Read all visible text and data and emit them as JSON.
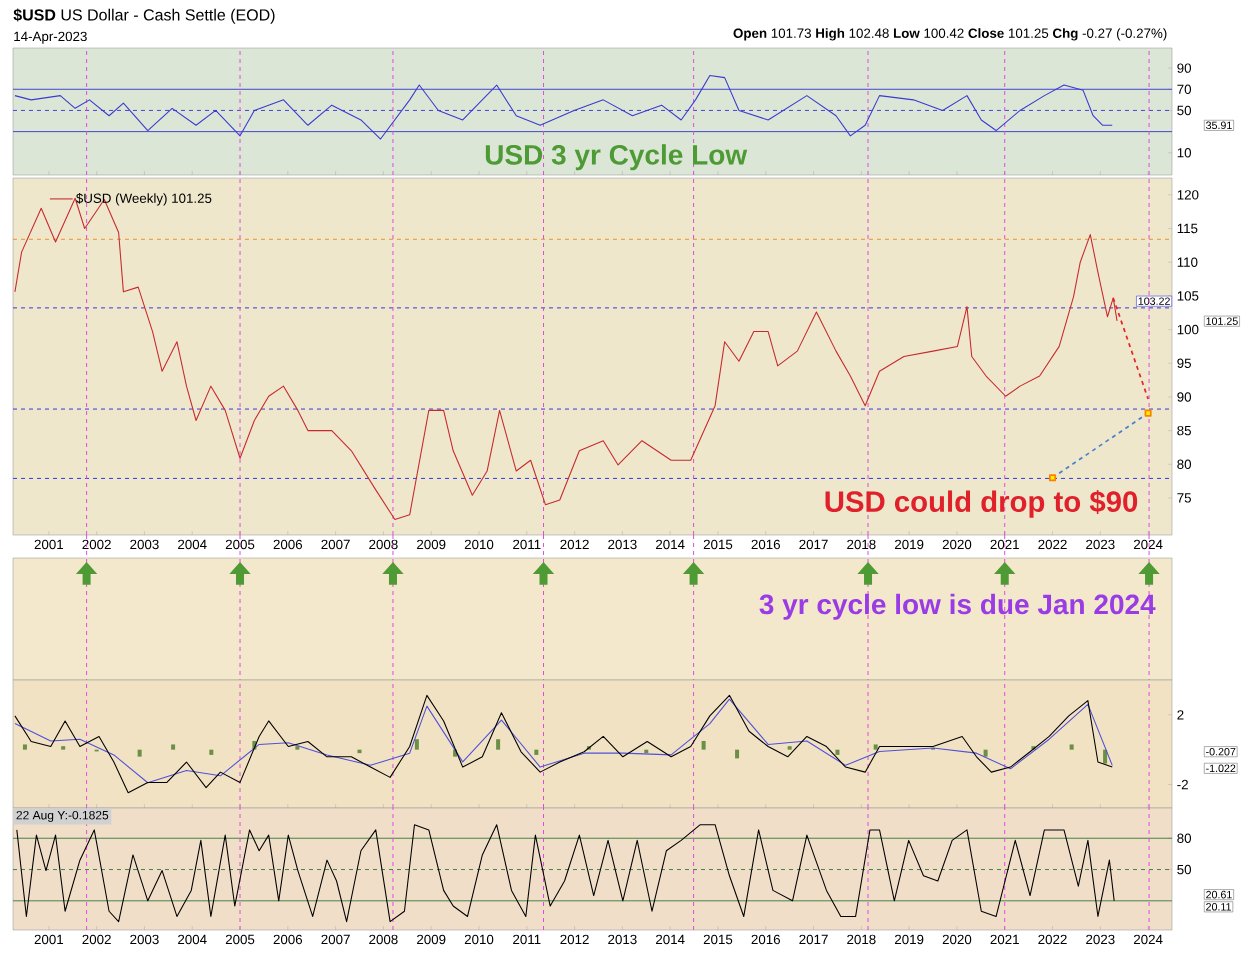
{
  "chart_data": [
    {
      "type": "line",
      "title": "**$USD** US Dollar - Cash Settle (EOD)",
      "subtitle": "14-Apr-2023",
      "annotations": [
        "**Open** 101.73 **High** 102.48 **Low** 100.42 **Close** 101.25 **Chg** -0.27 (-0.27%)",
        "USD 3 yr Cycle Low",
        "35.91"
      ],
      "tick_labels": "y",
      "xlim": [
        2000.25,
        2024.5
      ],
      "xticks": [
        2001,
        2002,
        2003,
        2004,
        2005,
        2006,
        2007,
        2008,
        2009,
        2010,
        2011,
        2012,
        2013,
        2014,
        2015,
        2016,
        2017,
        2018,
        2019,
        2020,
        2021,
        2022,
        2023,
        2024
      ],
      "ylim": [
        -11,
        109
      ],
      "yticks": [
        10,
        50,
        70,
        90
      ],
      "ref_lines": [
        {
          "axis": "y",
          "value": 70,
          "color": "#3a3ad0"
        },
        {
          "axis": "y",
          "value": 30,
          "color": "#3a3ad0"
        },
        {
          "axis": "y",
          "value": 50,
          "color": "#3a3ad0",
          "line_style": "dashed"
        },
        {
          "axis": "x",
          "value": 2001.79,
          "color": "#e040e0",
          "line_style": "dashed"
        },
        {
          "axis": "x",
          "value": 2005.0,
          "color": "#e040e0",
          "line_style": "dashed"
        },
        {
          "axis": "x",
          "value": 2008.2,
          "color": "#e040e0",
          "line_style": "dashed"
        },
        {
          "axis": "x",
          "value": 2011.35,
          "color": "#e040e0",
          "line_style": "dashed"
        },
        {
          "axis": "x",
          "value": 2014.49,
          "color": "#e040e0",
          "line_style": "dashed"
        },
        {
          "axis": "x",
          "value": 2018.14,
          "color": "#e040e0",
          "line_style": "dashed"
        },
        {
          "axis": "x",
          "value": 2021.0,
          "color": "#e040e0",
          "line_style": "dashed"
        },
        {
          "axis": "x",
          "value": 2024.02,
          "color": "#e040e0",
          "line_style": "dashed"
        }
      ],
      "series": [
        {
          "color": "#3a3ad0",
          "x": [
            2000.29,
            2000.63,
            2001.24,
            2001.55,
            2001.85,
            2002.26,
            2002.56,
            2003.07,
            2003.58,
            2004.08,
            2004.49,
            2005.0,
            2005.3,
            2005.91,
            2006.42,
            2006.92,
            2007.53,
            2007.94,
            2008.55,
            2008.75,
            2009.15,
            2009.66,
            2010.37,
            2010.78,
            2011.28,
            2011.99,
            2012.6,
            2013.21,
            2013.82,
            2014.23,
            2014.53,
            2014.83,
            2015.14,
            2015.44,
            2016.05,
            2016.86,
            2017.47,
            2017.77,
            2018.08,
            2018.38,
            2019.09,
            2019.7,
            2020.21,
            2020.51,
            2020.82,
            2021.32,
            2021.83,
            2022.24,
            2022.64,
            2022.85,
            2023.05,
            2023.25
          ],
          "values": [
            64,
            60,
            64,
            52,
            60,
            45,
            57,
            31,
            52,
            36,
            50,
            26,
            50,
            60,
            36,
            55,
            41,
            23,
            60,
            74,
            50,
            41,
            74,
            45,
            36,
            50,
            60,
            45,
            55,
            41,
            60,
            83,
            81,
            50,
            41,
            64,
            45,
            26,
            36,
            64,
            60,
            50,
            64,
            41,
            31,
            50,
            64,
            74,
            69,
            45,
            36,
            36
          ]
        }
      ]
    },
    {
      "type": "line",
      "legend": "top left",
      "annotations": [
        "USD could drop to $90",
        "101.25"
      ],
      "xlim": [
        2000.25,
        2024.5
      ],
      "xticks": [
        2001,
        2002,
        2003,
        2004,
        2005,
        2006,
        2007,
        2008,
        2009,
        2010,
        2011,
        2012,
        2013,
        2014,
        2015,
        2016,
        2017,
        2018,
        2019,
        2020,
        2021,
        2022,
        2023,
        2024
      ],
      "ylim": [
        69.5,
        122.5
      ],
      "yticks": [
        75,
        80,
        85,
        90,
        95,
        100,
        105,
        110,
        115,
        120
      ],
      "ref_lines": [
        {
          "axis": "y",
          "value": 113.4,
          "color": "#f08a20",
          "line_style": "dashed"
        },
        {
          "axis": "y",
          "value": 103.22,
          "color": "#2a2ae0",
          "line_style": "dashed",
          "label": "103.22"
        },
        {
          "axis": "y",
          "value": 88.2,
          "color": "#2a2ae0",
          "line_style": "dashed"
        },
        {
          "axis": "y",
          "value": 77.9,
          "color": "#2a2ae0",
          "line_style": "dashed"
        },
        {
          "axis": "x",
          "value": 2001.79,
          "color": "#e040e0",
          "line_style": "dashed"
        },
        {
          "axis": "x",
          "value": 2005.0,
          "color": "#e040e0",
          "line_style": "dashed"
        },
        {
          "axis": "x",
          "value": 2008.2,
          "color": "#e040e0",
          "line_style": "dashed"
        },
        {
          "axis": "x",
          "value": 2011.35,
          "color": "#e040e0",
          "line_style": "dashed"
        },
        {
          "axis": "x",
          "value": 2014.49,
          "color": "#e040e0",
          "line_style": "dashed"
        },
        {
          "axis": "x",
          "value": 2018.14,
          "color": "#e040e0",
          "line_style": "dashed"
        },
        {
          "axis": "x",
          "value": 2021.0,
          "color": "#e040e0",
          "line_style": "dashed"
        },
        {
          "axis": "x",
          "value": 2024.02,
          "color": "#e040e0",
          "line_style": "dashed"
        }
      ],
      "series": [
        {
          "name": "$USD (Weekly) 101.25",
          "color": "#c8282e",
          "x": [
            2000.29,
            2000.43,
            2000.84,
            2001.14,
            2001.55,
            2001.75,
            2002.16,
            2002.46,
            2002.56,
            2002.87,
            2003.17,
            2003.37,
            2003.68,
            2003.88,
            2004.08,
            2004.39,
            2004.69,
            2005.0,
            2005.3,
            2005.6,
            2005.91,
            2006.21,
            2006.42,
            2006.92,
            2007.33,
            2007.84,
            2008.24,
            2008.55,
            2008.95,
            2009.26,
            2009.46,
            2009.86,
            2010.17,
            2010.43,
            2010.78,
            2011.08,
            2011.39,
            2011.69,
            2012.1,
            2012.6,
            2012.91,
            2013.41,
            2014.02,
            2014.43,
            2014.94,
            2015.14,
            2015.44,
            2015.75,
            2016.05,
            2016.25,
            2016.66,
            2017.06,
            2017.47,
            2017.77,
            2018.08,
            2018.38,
            2018.89,
            2019.5,
            2020.01,
            2020.21,
            2020.31,
            2020.61,
            2021.02,
            2021.32,
            2021.73,
            2022.14,
            2022.44,
            2022.58,
            2022.79,
            2022.95,
            2023.15,
            2023.27,
            2023.35
          ],
          "values": [
            105.6,
            111.5,
            118,
            113,
            119.5,
            115,
            119.3,
            114.4,
            105.6,
            106.3,
            99.7,
            93.8,
            98.2,
            91.6,
            86.5,
            91.6,
            88,
            80.9,
            86.5,
            90.1,
            91.6,
            88,
            85,
            85,
            82,
            76.2,
            71.8,
            72.5,
            88,
            88,
            82,
            75.4,
            79,
            88,
            79,
            80.6,
            74,
            74.7,
            82,
            83.5,
            79.9,
            83.5,
            80.6,
            80.6,
            88.7,
            98.2,
            95.3,
            99.7,
            99.7,
            94.6,
            96.8,
            102.6,
            96.8,
            93.1,
            88.7,
            93.8,
            96,
            96.8,
            97.5,
            103.4,
            96,
            93.1,
            90.1,
            91.6,
            93.1,
            97.5,
            104.9,
            110,
            114.1,
            108.5,
            101.9,
            104.7,
            101.3
          ]
        },
        {
          "color": "#e02828",
          "line_style": "dashed",
          "x": [
            2023.27,
            2024.0
          ],
          "values": [
            104.7,
            89.7
          ]
        },
        {
          "color": "#4a80d0",
          "line_style": "dashed",
          "marker": "square",
          "x": [
            2022.0,
            2024.0
          ],
          "values": [
            78,
            87.6
          ]
        }
      ]
    },
    {
      "type": "other",
      "annotations": [
        "3 yr cycle low is due Jan 2024"
      ]
    },
    {
      "type": "line",
      "tick_labels": "y",
      "annotations": [
        "-0.207",
        "-1.022"
      ],
      "xlim": [
        2000.25,
        2024.5
      ],
      "xticks": [
        2001,
        2002,
        2003,
        2004,
        2005,
        2006,
        2007,
        2008,
        2009,
        2010,
        2011,
        2012,
        2013,
        2014,
        2015,
        2016,
        2017,
        2018,
        2019,
        2020,
        2021,
        2022,
        2023,
        2024
      ],
      "ylim": [
        -3.35,
        4
      ],
      "yticks": [
        -2,
        2
      ],
      "ref_lines": [
        {
          "axis": "x",
          "value": 2001.79,
          "color": "#e040e0",
          "line_style": "dashed"
        },
        {
          "axis": "x",
          "value": 2005.0,
          "color": "#e040e0",
          "line_style": "dashed"
        },
        {
          "axis": "x",
          "value": 2008.2,
          "color": "#e040e0",
          "line_style": "dashed"
        },
        {
          "axis": "x",
          "value": 2011.35,
          "color": "#e040e0",
          "line_style": "dashed"
        },
        {
          "axis": "x",
          "value": 2014.49,
          "color": "#e040e0",
          "line_style": "dashed"
        },
        {
          "axis": "x",
          "value": 2018.14,
          "color": "#e040e0",
          "line_style": "dashed"
        },
        {
          "axis": "x",
          "value": 2021.0,
          "color": "#e040e0",
          "line_style": "dashed"
        },
        {
          "axis": "x",
          "value": 2024.02,
          "color": "#e040e0",
          "line_style": "dashed"
        }
      ],
      "series": [
        {
          "type": "bar",
          "color": "#6a8f45",
          "x": [
            2000.5,
            2001.3,
            2002.0,
            2002.9,
            2003.6,
            2004.4,
            2005.3,
            2006.2,
            2007.5,
            2008.7,
            2009.5,
            2010.4,
            2011.2,
            2012.3,
            2013.5,
            2014.7,
            2015.4,
            2016.5,
            2017.5,
            2018.3,
            2019.5,
            2020.6,
            2021.6,
            2022.4,
            2023.1
          ],
          "values": [
            0.3,
            0.2,
            -0.1,
            -0.4,
            0.3,
            -0.3,
            0.5,
            0.2,
            -0.2,
            0.6,
            -0.4,
            0.6,
            -0.3,
            0.2,
            -0.2,
            0.5,
            -0.5,
            0.2,
            -0.3,
            0.3,
            0.1,
            -0.4,
            0.2,
            0.3,
            -0.8
          ]
        },
        {
          "color": "#5050d8",
          "x": [
            2000.29,
            2001.04,
            2001.65,
            2002.36,
            2003.07,
            2003.88,
            2004.59,
            2005.4,
            2006.01,
            2006.82,
            2007.73,
            2008.55,
            2008.91,
            2009.66,
            2010.47,
            2011.28,
            2012.2,
            2013.01,
            2014.02,
            2014.83,
            2015.24,
            2016.05,
            2016.86,
            2017.67,
            2018.38,
            2019.5,
            2020.41,
            2021.12,
            2021.93,
            2022.74,
            2023.25
          ],
          "values": [
            1.5,
            0.5,
            0.6,
            -0.3,
            -1.9,
            -1.2,
            -1.5,
            0.3,
            0.4,
            -0.3,
            -0.9,
            -0.2,
            2.5,
            -0.7,
            1.7,
            -1.0,
            -0.2,
            -0.2,
            -0.3,
            1.5,
            2.9,
            0.3,
            0.5,
            -0.9,
            -0.1,
            0.1,
            -0.2,
            -1.1,
            0.6,
            2.6,
            -0.9
          ]
        },
        {
          "color": "#000000",
          "x": [
            2000.29,
            2000.63,
            2001.04,
            2001.34,
            2001.65,
            2002.05,
            2002.36,
            2002.66,
            2003.07,
            2003.47,
            2003.88,
            2004.29,
            2004.59,
            2005.0,
            2005.4,
            2005.6,
            2006.01,
            2006.42,
            2006.82,
            2007.33,
            2007.73,
            2008.14,
            2008.55,
            2008.91,
            2009.26,
            2009.66,
            2010.07,
            2010.47,
            2010.88,
            2011.28,
            2011.69,
            2012.2,
            2012.6,
            2013.01,
            2013.52,
            2014.02,
            2014.43,
            2014.83,
            2015.24,
            2015.65,
            2016.05,
            2016.46,
            2016.86,
            2017.27,
            2017.67,
            2018.08,
            2018.38,
            2018.89,
            2019.5,
            2020.11,
            2020.41,
            2020.72,
            2021.12,
            2021.53,
            2021.93,
            2022.34,
            2022.74,
            2022.95,
            2023.25
          ],
          "values": [
            1.94,
            0.47,
            0.18,
            1.65,
            0.18,
            0.76,
            -0.71,
            -2.47,
            -1.88,
            -1.88,
            -0.71,
            -2.18,
            -1.29,
            -1.88,
            0.76,
            1.65,
            0.18,
            0.47,
            -0.41,
            -0.41,
            -1.0,
            -1.59,
            0.18,
            3.12,
            1.65,
            -1.0,
            -0.41,
            2.12,
            -0.12,
            -1.29,
            -0.71,
            -0.12,
            0.76,
            -0.41,
            0.47,
            -0.41,
            0.18,
            1.94,
            3.12,
            1.06,
            0.18,
            -0.41,
            0.76,
            0.18,
            -1.0,
            -1.29,
            0.18,
            0.18,
            0.18,
            0.76,
            -0.41,
            -1.29,
            -1.0,
            -0.12,
            0.76,
            1.94,
            2.82,
            -0.71,
            -1.0
          ]
        }
      ]
    },
    {
      "type": "line",
      "annotations": [
        "22 Aug Y:-0.1825",
        "20.61",
        "20.11"
      ],
      "xlim": [
        2000.25,
        2024.5
      ],
      "xticks": [
        2001,
        2002,
        2003,
        2004,
        2005,
        2006,
        2007,
        2008,
        2009,
        2010,
        2011,
        2012,
        2013,
        2014,
        2015,
        2016,
        2017,
        2018,
        2019,
        2020,
        2021,
        2022,
        2023,
        2024
      ],
      "ylim": [
        -8,
        109
      ],
      "yticks": [
        50,
        80
      ],
      "ref_lines": [
        {
          "axis": "y",
          "value": 80,
          "color": "#3a7a3a"
        },
        {
          "axis": "y",
          "value": 50,
          "color": "#3a7a3a",
          "line_style": "dashed"
        },
        {
          "axis": "y",
          "value": 20,
          "color": "#3a7a3a"
        },
        {
          "axis": "x",
          "value": 2001.79,
          "color": "#e040e0",
          "line_style": "dashed"
        },
        {
          "axis": "x",
          "value": 2005.0,
          "color": "#e040e0",
          "line_style": "dashed"
        },
        {
          "axis": "x",
          "value": 2008.2,
          "color": "#e040e0",
          "line_style": "dashed"
        },
        {
          "axis": "x",
          "value": 2011.35,
          "color": "#e040e0",
          "line_style": "dashed"
        },
        {
          "axis": "x",
          "value": 2014.49,
          "color": "#e040e0",
          "line_style": "dashed"
        },
        {
          "axis": "x",
          "value": 2018.14,
          "color": "#e040e0",
          "line_style": "dashed"
        },
        {
          "axis": "x",
          "value": 2021.0,
          "color": "#e040e0",
          "line_style": "dashed"
        },
        {
          "axis": "x",
          "value": 2024.02,
          "color": "#e040e0",
          "line_style": "dashed"
        }
      ],
      "series": [
        {
          "color": "#000000",
          "x": [
            2000.33,
            2000.53,
            2000.74,
            2000.94,
            2001.14,
            2001.34,
            2001.65,
            2001.95,
            2002.26,
            2002.46,
            2002.76,
            2003.07,
            2003.37,
            2003.68,
            2003.98,
            2004.18,
            2004.39,
            2004.69,
            2004.89,
            2005.2,
            2005.4,
            2005.6,
            2005.81,
            2006.01,
            2006.21,
            2006.52,
            2006.82,
            2007.02,
            2007.23,
            2007.53,
            2007.84,
            2008.14,
            2008.44,
            2008.65,
            2008.95,
            2009.26,
            2009.46,
            2009.76,
            2010.07,
            2010.37,
            2010.68,
            2010.98,
            2011.18,
            2011.49,
            2011.79,
            2012.1,
            2012.4,
            2012.7,
            2013.01,
            2013.31,
            2013.62,
            2013.92,
            2014.23,
            2014.63,
            2014.94,
            2015.24,
            2015.54,
            2015.85,
            2016.15,
            2016.56,
            2016.86,
            2017.27,
            2017.57,
            2017.88,
            2018.18,
            2018.38,
            2018.69,
            2018.99,
            2019.3,
            2019.6,
            2019.9,
            2020.21,
            2020.51,
            2020.82,
            2021.22,
            2021.53,
            2021.83,
            2022.24,
            2022.54,
            2022.74,
            2022.95,
            2023.19,
            2023.29
          ],
          "values": [
            88,
            5,
            83,
            49,
            83,
            10,
            59,
            88,
            10,
            0,
            64,
            20,
            49,
            5,
            30,
            78,
            5,
            83,
            15,
            88,
            68,
            83,
            20,
            83,
            49,
            5,
            59,
            39,
            0,
            68,
            88,
            0,
            10,
            93,
            88,
            30,
            15,
            5,
            64,
            93,
            30,
            5,
            83,
            15,
            39,
            83,
            25,
            78,
            20,
            78,
            10,
            68,
            78,
            93,
            93,
            44,
            5,
            88,
            30,
            20,
            83,
            30,
            5,
            5,
            88,
            88,
            20,
            78,
            44,
            39,
            78,
            88,
            10,
            5,
            78,
            25,
            88,
            88,
            34,
            78,
            5,
            59,
            20
          ]
        }
      ]
    }
  ]
}
